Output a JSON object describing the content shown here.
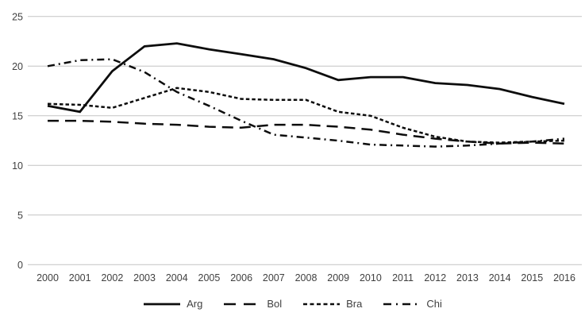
{
  "chart_data": {
    "type": "line",
    "title": "",
    "xlabel": "",
    "ylabel": "",
    "x": [
      "2000",
      "2001",
      "2002",
      "2003",
      "2004",
      "2005",
      "2006",
      "2007",
      "2008",
      "2009",
      "2010",
      "2011",
      "2012",
      "2013",
      "2014",
      "2015",
      "2016"
    ],
    "yticks": [
      "0",
      "5",
      "10",
      "15",
      "20",
      "25"
    ],
    "ylim": [
      0,
      25
    ],
    "grid": "horizontal-only",
    "legend_position": "bottom-center",
    "colors": {
      "line": "#0d0d0d",
      "gridline": "#c3c3c3",
      "text": "#404040"
    },
    "series": [
      {
        "name": "Arg",
        "dash": "solid",
        "values": [
          16.0,
          15.4,
          19.5,
          22.0,
          22.3,
          21.7,
          21.2,
          20.7,
          19.8,
          18.6,
          18.9,
          18.9,
          18.3,
          18.1,
          17.7,
          16.9,
          16.2
        ]
      },
      {
        "name": "Bol",
        "dash": "long-dash",
        "values": [
          14.5,
          14.5,
          14.4,
          14.2,
          14.1,
          13.9,
          13.8,
          14.1,
          14.1,
          13.9,
          13.6,
          13.1,
          12.7,
          12.4,
          12.2,
          12.3,
          12.2
        ]
      },
      {
        "name": "Bra",
        "dash": "short-dash",
        "values": [
          16.2,
          16.1,
          15.8,
          16.8,
          17.8,
          17.4,
          16.7,
          16.6,
          16.6,
          15.4,
          15.0,
          13.8,
          12.9,
          12.4,
          12.3,
          12.4,
          12.5
        ]
      },
      {
        "name": "Chi",
        "dash": "dash-dot",
        "values": [
          20.0,
          20.6,
          20.7,
          19.4,
          17.4,
          16.0,
          14.5,
          13.1,
          12.8,
          12.5,
          12.1,
          12.0,
          11.9,
          12.0,
          12.2,
          12.4,
          12.7
        ]
      }
    ]
  }
}
